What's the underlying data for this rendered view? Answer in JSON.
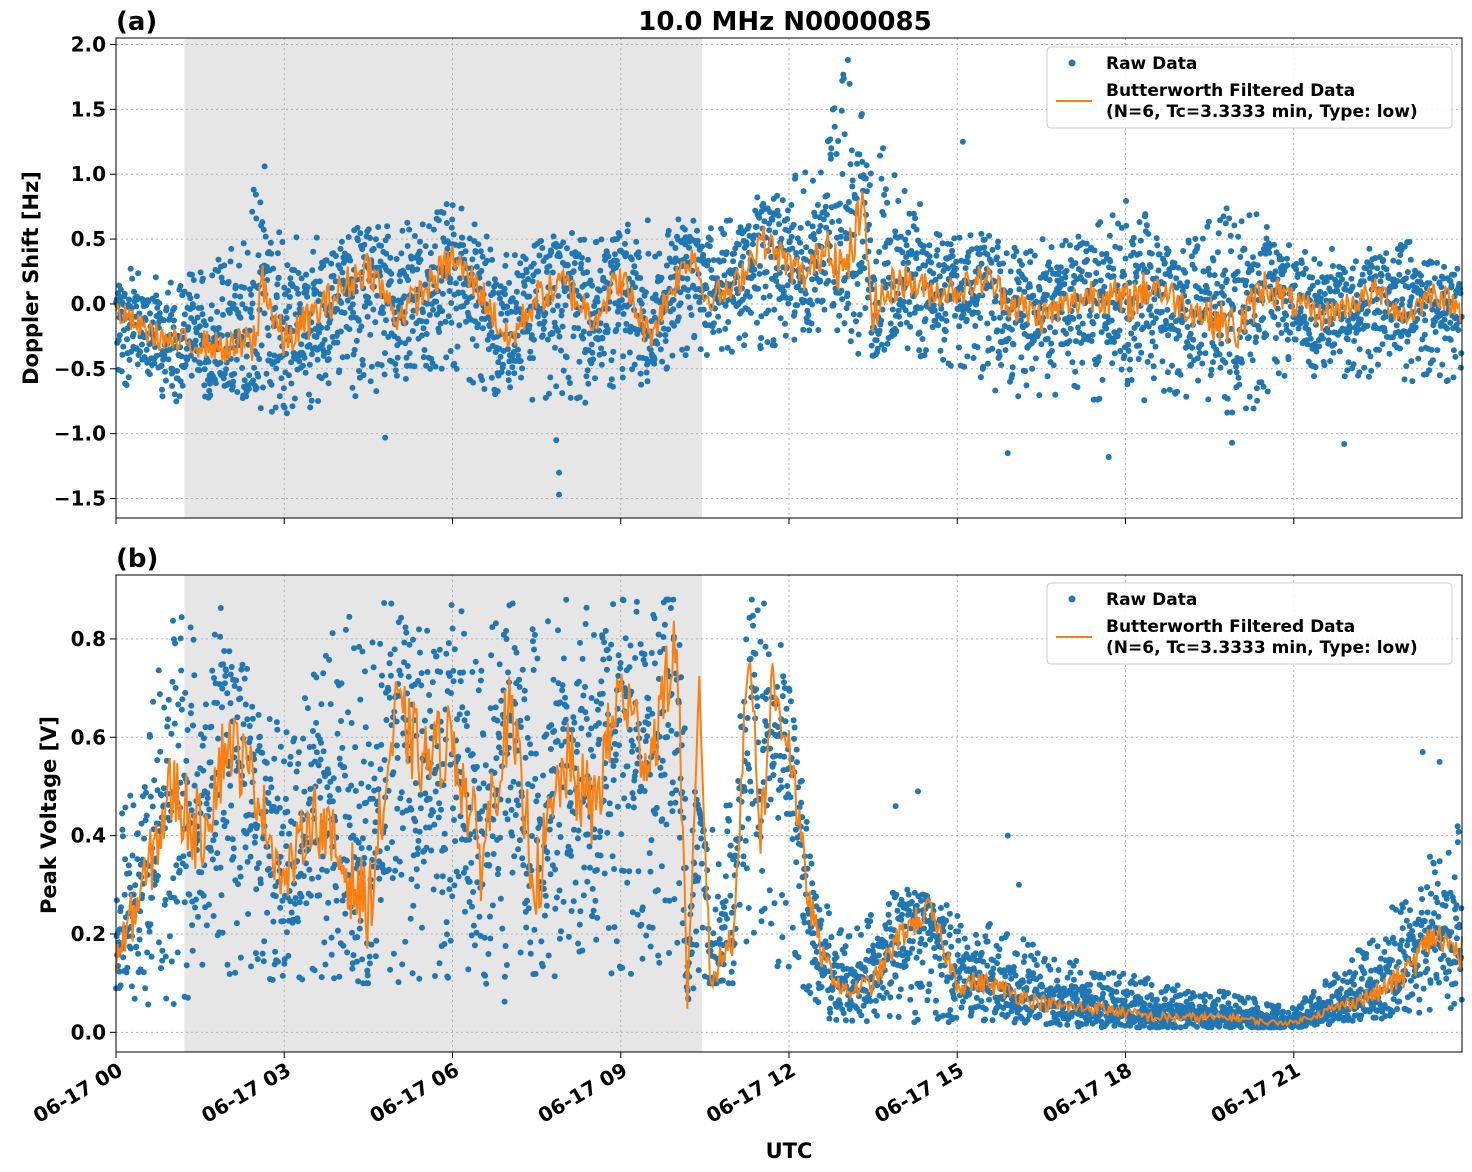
{
  "figure": {
    "title": "10.0 MHz N0000085",
    "xlabel": "UTC",
    "x_tick_labels": [
      "06-17 00",
      "06-17 03",
      "06-17 06",
      "06-17 09",
      "06-17 12",
      "06-17 15",
      "06-17 18",
      "06-17 21"
    ]
  },
  "colors": {
    "raw": "#1f77b4",
    "filtered": "#ff7f0e",
    "shade": "#e6e6e6",
    "grid": "#b0b0b0"
  },
  "chart_data": [
    {
      "panel_label": "(a)",
      "type": "scatter",
      "ylabel": "Doppler Shift [Hz]",
      "xlim_hours": [
        0,
        24
      ],
      "ylim": [
        -1.65,
        2.05
      ],
      "y_ticks": [
        -1.5,
        -1.0,
        -0.5,
        0.0,
        0.5,
        1.0,
        1.5,
        2.0
      ],
      "y_tick_labels": [
        "−1.5",
        "−1.0",
        "−0.5",
        "0.0",
        "0.5",
        "1.0",
        "1.5",
        "2.0"
      ],
      "grid": true,
      "legend_position": "top-right",
      "shaded_interval_hours": [
        1.22,
        10.45
      ],
      "legend": {
        "raw": "Raw Data",
        "filtered_line1": "Butterworth Filtered Data",
        "filtered_line2": "(N=6, Tc=3.3333 min, Type: low)"
      },
      "series": [
        {
          "name": "Raw Data",
          "kind": "points",
          "x": [
            0,
            1,
            2,
            2.5,
            3,
            4,
            5,
            6,
            7,
            8,
            9,
            10,
            10.5,
            11,
            12,
            12.5,
            13,
            14,
            15,
            16,
            17,
            18,
            19,
            20,
            21,
            22,
            23,
            24
          ],
          "upper": [
            0.3,
            0.2,
            0.4,
            1.0,
            0.5,
            0.6,
            0.6,
            0.8,
            0.4,
            0.6,
            0.6,
            0.7,
            0.6,
            0.7,
            1.0,
            1.1,
            1.85,
            0.9,
            0.6,
            0.5,
            0.5,
            0.8,
            0.5,
            0.8,
            0.5,
            0.4,
            0.5,
            0.3
          ],
          "lower": [
            -0.6,
            -0.8,
            -0.7,
            -0.8,
            -0.9,
            -0.8,
            -0.6,
            -0.5,
            -0.8,
            -0.8,
            -0.7,
            -0.5,
            -0.4,
            -0.4,
            -0.3,
            -0.2,
            -0.4,
            -0.4,
            -0.5,
            -0.8,
            -0.7,
            -0.8,
            -0.7,
            -0.9,
            -0.6,
            -0.6,
            -0.6,
            -0.6
          ],
          "outliers": [
            [
              7.9,
              -1.47
            ],
            [
              7.9,
              -1.3
            ],
            [
              7.85,
              -1.05
            ],
            [
              4.8,
              -1.03
            ],
            [
              2.65,
              1.06
            ],
            [
              12.95,
              1.72
            ],
            [
              13.05,
              1.88
            ],
            [
              15.9,
              -1.15
            ],
            [
              17.7,
              -1.18
            ],
            [
              19.9,
              -1.07
            ],
            [
              21.9,
              -1.08
            ],
            [
              15.1,
              1.25
            ]
          ]
        },
        {
          "name": "Butterworth Filtered Data",
          "kind": "line",
          "x": [
            0,
            0.5,
            1,
            1.5,
            2,
            2.5,
            2.6,
            2.8,
            3,
            3.5,
            4,
            4.5,
            5,
            5.5,
            6,
            6.5,
            7,
            7.5,
            8,
            8.5,
            9,
            9.5,
            10,
            10.3,
            10.5,
            11,
            11.5,
            12,
            12.3,
            12.7,
            13,
            13.3,
            13.5,
            14,
            14.5,
            15,
            15.5,
            16,
            16.5,
            17,
            17.5,
            18,
            18.5,
            19,
            19.5,
            20,
            20.5,
            21,
            21.5,
            22,
            22.5,
            23,
            23.5,
            24
          ],
          "y": [
            -0.05,
            -0.2,
            -0.3,
            -0.3,
            -0.35,
            -0.3,
            0.25,
            -0.1,
            -0.3,
            -0.1,
            0.1,
            0.3,
            -0.1,
            0.1,
            0.35,
            0.1,
            -0.3,
            0.05,
            0.15,
            -0.1,
            0.2,
            -0.25,
            0.2,
            0.4,
            0.05,
            0.1,
            0.5,
            0.3,
            0.2,
            0.5,
            0.2,
            0.75,
            -0.05,
            0.2,
            0.1,
            0.1,
            0.2,
            0.0,
            -0.1,
            0.0,
            0.1,
            0.0,
            0.15,
            0.0,
            -0.1,
            -0.2,
            0.15,
            0.0,
            -0.1,
            0.0,
            0.1,
            -0.1,
            0.1,
            -0.05
          ]
        }
      ]
    },
    {
      "panel_label": "(b)",
      "type": "scatter",
      "ylabel": "Peak Voltage [V]",
      "xlim_hours": [
        0,
        24
      ],
      "ylim": [
        -0.04,
        0.93
      ],
      "y_ticks": [
        0.0,
        0.2,
        0.4,
        0.6,
        0.8
      ],
      "y_tick_labels": [
        "0.0",
        "0.2",
        "0.4",
        "0.6",
        "0.8"
      ],
      "grid": true,
      "legend_position": "top-right",
      "shaded_interval_hours": [
        1.22,
        10.45
      ],
      "legend": {
        "raw": "Raw Data",
        "filtered_line1": "Butterworth Filtered Data",
        "filtered_line2": "(N=6, Tc=3.3333 min, Type: low)"
      },
      "series": [
        {
          "name": "Raw Data",
          "kind": "points",
          "x": [
            0,
            1,
            2,
            3,
            4,
            5,
            6,
            7,
            8,
            9,
            10,
            10.3,
            10.5,
            11,
            11.3,
            11.7,
            12,
            12.5,
            13,
            14,
            15,
            16,
            17,
            18,
            19,
            20,
            21,
            22,
            23,
            24
          ],
          "upper": [
            0.4,
            0.85,
            0.88,
            0.6,
            0.85,
            0.88,
            0.88,
            0.88,
            0.88,
            0.88,
            0.88,
            0.5,
            0.4,
            0.5,
            0.88,
            0.88,
            0.7,
            0.3,
            0.2,
            0.3,
            0.25,
            0.2,
            0.15,
            0.12,
            0.1,
            0.08,
            0.05,
            0.15,
            0.3,
            0.45
          ],
          "lower": [
            0.03,
            0.05,
            0.1,
            0.1,
            0.1,
            0.1,
            0.1,
            0.05,
            0.05,
            0.1,
            0.15,
            0.03,
            0.1,
            0.1,
            0.2,
            0.15,
            0.1,
            0.02,
            0.02,
            0.02,
            0.02,
            0.02,
            0.01,
            0.01,
            0.01,
            0.01,
            0.01,
            0.02,
            0.03,
            0.03
          ],
          "outliers": [
            [
              13.9,
              0.46
            ],
            [
              14.3,
              0.49
            ],
            [
              15.9,
              0.4
            ],
            [
              16.1,
              0.3
            ],
            [
              23.3,
              0.57
            ],
            [
              23.6,
              0.55
            ]
          ]
        },
        {
          "name": "Butterworth Filtered Data",
          "kind": "line",
          "x": [
            0,
            0.5,
            1,
            1.5,
            2,
            2.5,
            3,
            3.5,
            4,
            4.5,
            5,
            5.5,
            6,
            6.5,
            7,
            7.5,
            8,
            8.5,
            9,
            9.5,
            10,
            10.2,
            10.4,
            10.6,
            11,
            11.3,
            11.5,
            11.7,
            12,
            12.3,
            12.6,
            13,
            13.5,
            14,
            14.5,
            15,
            15.5,
            16,
            16.5,
            17,
            17.5,
            18,
            18.5,
            19,
            19.5,
            20,
            20.5,
            21,
            21.5,
            22,
            22.5,
            23,
            23.5,
            24
          ],
          "y": [
            0.15,
            0.3,
            0.5,
            0.4,
            0.6,
            0.5,
            0.3,
            0.45,
            0.35,
            0.25,
            0.65,
            0.55,
            0.6,
            0.35,
            0.65,
            0.3,
            0.55,
            0.45,
            0.7,
            0.55,
            0.8,
            0.05,
            0.7,
            0.1,
            0.2,
            0.8,
            0.4,
            0.7,
            0.6,
            0.3,
            0.15,
            0.08,
            0.1,
            0.2,
            0.25,
            0.1,
            0.1,
            0.08,
            0.06,
            0.05,
            0.05,
            0.04,
            0.03,
            0.03,
            0.03,
            0.03,
            0.02,
            0.02,
            0.04,
            0.06,
            0.08,
            0.12,
            0.2,
            0.15
          ]
        }
      ]
    }
  ]
}
